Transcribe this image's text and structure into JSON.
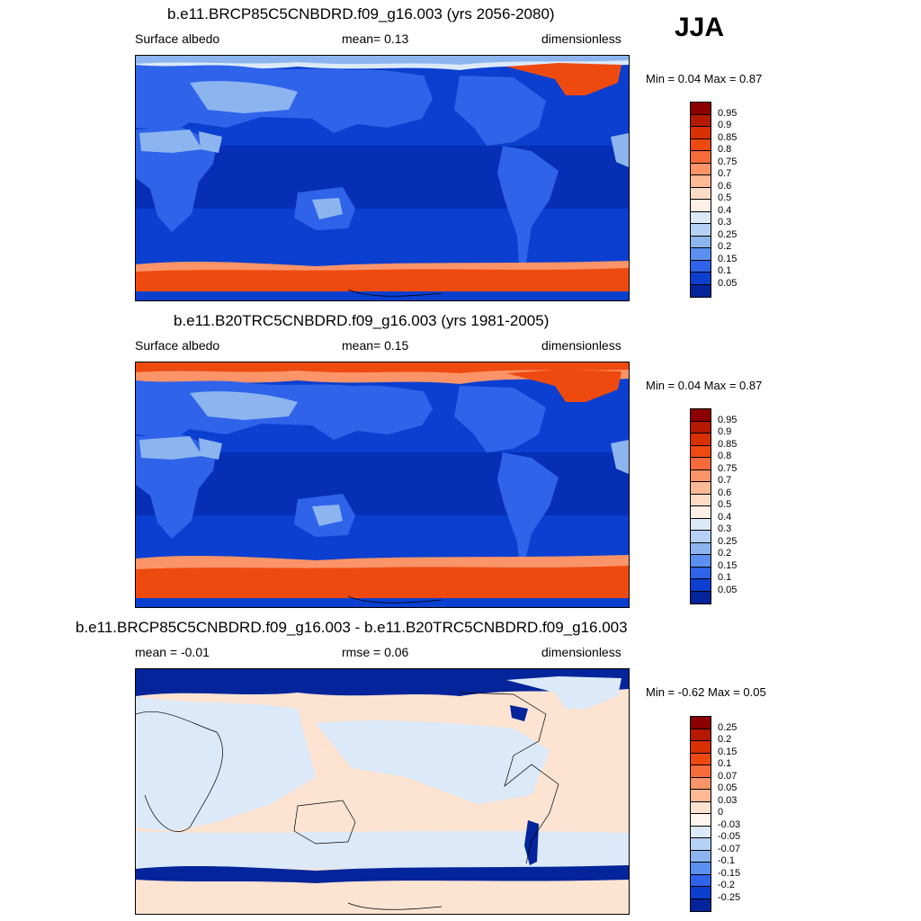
{
  "season": "JJA",
  "panels": [
    {
      "title": "b.e11.BRCP85C5CNBDRD.f09_g16.003 (yrs 2056-2080)",
      "left_label": "Surface albedo",
      "center_label": "mean=   0.13",
      "right_label": "dimensionless",
      "minmax": "Min =   0.04 Max =   0.87"
    },
    {
      "title": "b.e11.B20TRC5CNBDRD.f09_g16.003 (yrs 1981-2005)",
      "left_label": "Surface albedo",
      "center_label": "mean=   0.15",
      "right_label": "dimensionless",
      "minmax": "Min =   0.04 Max =   0.87"
    },
    {
      "title": "b.e11.BRCP85C5CNBDRD.f09_g16.003 - b.e11.B20TRC5CNBDRD.f09_g16.003",
      "left_label": "mean =  -0.01",
      "center_label": "rmse =   0.06",
      "right_label": "dimensionless",
      "minmax": "Min =  -0.62 Max =   0.05"
    }
  ],
  "colorbars": {
    "absolute": {
      "labels": [
        "0.95",
        "0.9",
        "0.85",
        "0.8",
        "0.75",
        "0.7",
        "0.6",
        "0.5",
        "0.4",
        "0.3",
        "0.25",
        "0.2",
        "0.15",
        "0.1",
        "0.05"
      ],
      "colors": [
        "#8b0000",
        "#b51a00",
        "#d83000",
        "#ee4a10",
        "#f76b3a",
        "#fb9468",
        "#fdb896",
        "#fddcc6",
        "#fff0e6",
        "#dce9f8",
        "#b6d1f5",
        "#8cb5f0",
        "#5b8ff0",
        "#2f63ea",
        "#0a3fd0",
        "#03249a"
      ]
    },
    "difference": {
      "labels": [
        "0.25",
        "0.2",
        "0.15",
        "0.1",
        "0.07",
        "0.05",
        "0.03",
        "0",
        "-0.03",
        "-0.05",
        "-0.07",
        "-0.1",
        "-0.15",
        "-0.2",
        "-0.25"
      ],
      "colors": [
        "#8b0000",
        "#b51a00",
        "#d83000",
        "#ee4a10",
        "#f76b3a",
        "#fb9468",
        "#fdb896",
        "#fde4d2",
        "#fff6f0",
        "#dce9f8",
        "#b6d1f5",
        "#8cb5f0",
        "#5b8ff0",
        "#2f63ea",
        "#0a3fd0",
        "#03249a"
      ]
    }
  },
  "map_colors": {
    "ocean": "#0a3fd0",
    "ocean_tropical": "#062fb5",
    "land_low": "#2f63ea",
    "land_bright": "#8cb5f0",
    "ice_sheet": "#ee4a10",
    "ice_edge": "#fb9468",
    "sea_ice": "#dce9f8",
    "diff_neutral": "#fde4d2",
    "diff_cool": "#dce9f8",
    "diff_strong": "#03249a"
  }
}
